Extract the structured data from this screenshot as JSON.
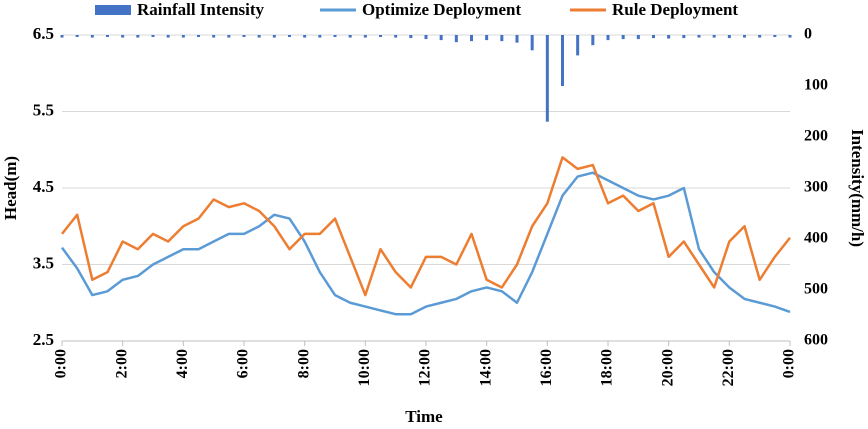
{
  "chart_data": {
    "type": "bar-line",
    "xlabel": "Time",
    "ylabel": "Head(m)",
    "y2label": "Intensity(mm/h)",
    "x": [
      0,
      0.5,
      1,
      1.5,
      2,
      2.5,
      3,
      3.5,
      4,
      4.5,
      5,
      5.5,
      6,
      6.5,
      7,
      7.5,
      8,
      8.5,
      9,
      9.5,
      10,
      10.5,
      11,
      11.5,
      12,
      12.5,
      13,
      13.5,
      14,
      14.5,
      15,
      15.5,
      16,
      16.5,
      17,
      17.5,
      18,
      18.5,
      19,
      19.5,
      20,
      20.5,
      21,
      21.5,
      22,
      22.5,
      23,
      23.5,
      24
    ],
    "xlim": [
      0,
      24
    ],
    "xticks": [
      {
        "value": 0,
        "label": "0:00"
      },
      {
        "value": 2,
        "label": "2:00"
      },
      {
        "value": 4,
        "label": "4:00"
      },
      {
        "value": 6,
        "label": "6:00"
      },
      {
        "value": 8,
        "label": "8:00"
      },
      {
        "value": 10,
        "label": "10:00"
      },
      {
        "value": 12,
        "label": "12:00"
      },
      {
        "value": 14,
        "label": "14:00"
      },
      {
        "value": 16,
        "label": "16:00"
      },
      {
        "value": 18,
        "label": "18:00"
      },
      {
        "value": 20,
        "label": "20:00"
      },
      {
        "value": 22,
        "label": "22:00"
      },
      {
        "value": 24,
        "label": "0:00"
      }
    ],
    "ylim": [
      2.5,
      6.5
    ],
    "yticks": [
      2.5,
      3.5,
      4.5,
      5.5,
      6.5
    ],
    "y2lim": [
      0,
      600
    ],
    "y2ticks": [
      0,
      100,
      200,
      300,
      400,
      500,
      600
    ],
    "y2_inverted": true,
    "grid": true,
    "legend": "top",
    "series": [
      {
        "name": "Rainfall Intensity",
        "color": "#4472c4",
        "kind": "bar",
        "axis": "y2",
        "values": [
          5,
          4,
          5,
          4,
          5,
          5,
          4,
          5,
          5,
          4,
          5,
          5,
          4,
          5,
          5,
          4,
          5,
          5,
          4,
          5,
          5,
          4,
          5,
          6,
          8,
          10,
          14,
          12,
          10,
          12,
          15,
          30,
          170,
          100,
          40,
          20,
          10,
          8,
          8,
          6,
          7,
          6,
          5,
          5,
          6,
          5,
          5,
          4,
          5
        ]
      },
      {
        "name": "Optimize Deployment",
        "color": "#5b9bd5",
        "kind": "line",
        "values": [
          3.72,
          3.45,
          3.1,
          3.15,
          3.3,
          3.35,
          3.5,
          3.6,
          3.7,
          3.7,
          3.8,
          3.9,
          3.9,
          4.0,
          4.15,
          4.1,
          3.8,
          3.4,
          3.1,
          3.0,
          2.95,
          2.9,
          2.85,
          2.85,
          2.95,
          3.0,
          3.05,
          3.15,
          3.2,
          3.15,
          3.0,
          3.4,
          3.9,
          4.4,
          4.65,
          4.7,
          4.6,
          4.5,
          4.4,
          4.35,
          4.4,
          4.5,
          3.7,
          3.4,
          3.2,
          3.05,
          3.0,
          2.95,
          2.88
        ]
      },
      {
        "name": "Rule Deployment",
        "color": "#ed7d31",
        "kind": "line",
        "values": [
          3.9,
          4.15,
          3.3,
          3.4,
          3.8,
          3.7,
          3.9,
          3.8,
          4.0,
          4.1,
          4.35,
          4.25,
          4.3,
          4.2,
          4.0,
          3.7,
          3.9,
          3.9,
          4.1,
          3.6,
          3.1,
          3.7,
          3.4,
          3.2,
          3.6,
          3.6,
          3.5,
          3.9,
          3.3,
          3.2,
          3.5,
          4.0,
          4.3,
          4.9,
          4.75,
          4.8,
          4.3,
          4.4,
          4.2,
          4.3,
          3.6,
          3.8,
          3.5,
          3.2,
          3.8,
          4.0,
          3.3,
          3.6,
          3.85
        ]
      }
    ]
  }
}
